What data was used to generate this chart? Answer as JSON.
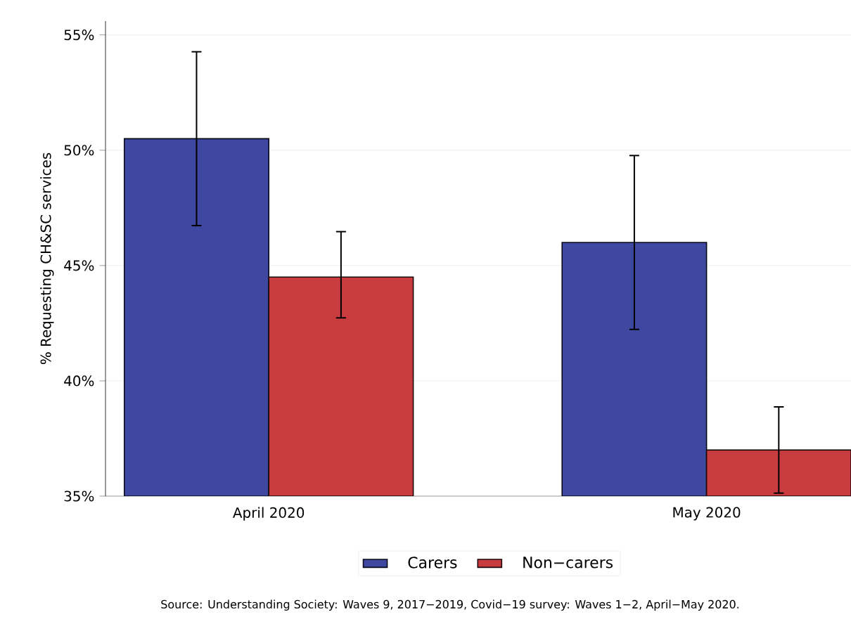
{
  "chart_data": {
    "type": "bar",
    "ylabel": "% Requesting CH&SC services",
    "categories": [
      "April 2020",
      "May 2020"
    ],
    "series": [
      {
        "name": "Carers",
        "color": "#3f48a0",
        "values": [
          50.5,
          46.0
        ],
        "errors": [
          [
            46.7,
            54.3
          ],
          [
            42.2,
            49.8
          ]
        ]
      },
      {
        "name": "Non−carers",
        "color": "#c83c40",
        "values": [
          44.5,
          37.0
        ],
        "errors": [
          [
            42.7,
            46.5
          ],
          [
            35.1,
            38.9
          ]
        ]
      }
    ],
    "ylim": [
      35,
      55.6
    ],
    "yticks": [
      {
        "value": 35,
        "label": "35%"
      },
      {
        "value": 40,
        "label": "40%"
      },
      {
        "value": 45,
        "label": "45%"
      },
      {
        "value": 50,
        "label": "50%"
      },
      {
        "value": 55,
        "label": "55%"
      }
    ],
    "grid": "y",
    "legend": "bottom",
    "annotations": [
      "Source: Understanding Society: Waves 9, 2017−2019, Covid−19 survey: Waves 1−2, April−May 2020."
    ]
  }
}
